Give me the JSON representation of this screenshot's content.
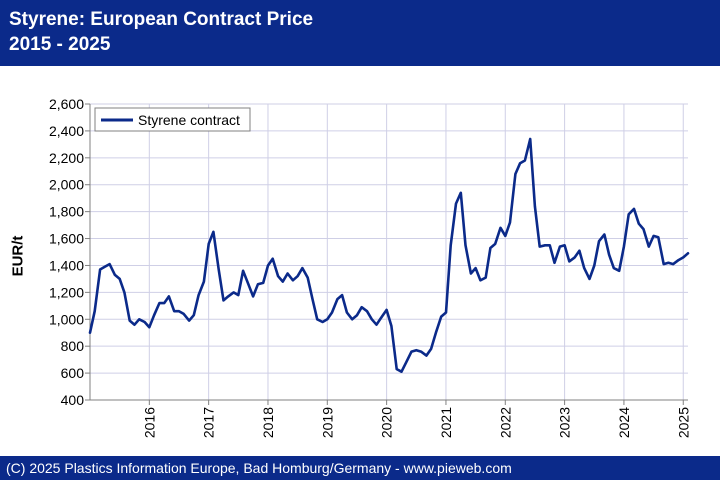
{
  "header": {
    "title_line1": "Styrene: European Contract Price",
    "title_line2": "2015 - 2025",
    "background": "#0b2a8a"
  },
  "footer": {
    "text": "(C) 2025 Plastics Information Europe, Bad Homburg/Germany - www.pieweb.com"
  },
  "chart_data": {
    "type": "line",
    "ylabel": "EUR/t",
    "xlabel": "",
    "ylim": [
      400,
      2600
    ],
    "yticks": [
      400,
      600,
      800,
      1000,
      1200,
      1400,
      1600,
      1800,
      2000,
      2200,
      2400,
      2600
    ],
    "ytick_labels": [
      "400",
      "600",
      "800",
      "1,000",
      "1,200",
      "1,400",
      "1,600",
      "1,800",
      "2,000",
      "2,200",
      "2,400",
      "2,600"
    ],
    "xlim": [
      2015,
      2025.08
    ],
    "xticks": [
      2016,
      2017,
      2018,
      2019,
      2020,
      2021,
      2022,
      2023,
      2024,
      2025
    ],
    "xtick_labels": [
      "2016",
      "2017",
      "2018",
      "2019",
      "2020",
      "2021",
      "2022",
      "2023",
      "2024",
      "2025"
    ],
    "grid": true,
    "legend_position": "top-left",
    "series": [
      {
        "name": "Styrene contract",
        "color": "#0b2a8a",
        "x": [
          2015.0,
          2015.08,
          2015.17,
          2015.25,
          2015.33,
          2015.42,
          2015.5,
          2015.58,
          2015.67,
          2015.75,
          2015.83,
          2015.92,
          2016.0,
          2016.08,
          2016.17,
          2016.25,
          2016.33,
          2016.42,
          2016.5,
          2016.58,
          2016.67,
          2016.75,
          2016.83,
          2016.92,
          2017.0,
          2017.08,
          2017.17,
          2017.25,
          2017.33,
          2017.42,
          2017.5,
          2017.58,
          2017.67,
          2017.75,
          2017.83,
          2017.92,
          2018.0,
          2018.08,
          2018.17,
          2018.25,
          2018.33,
          2018.42,
          2018.5,
          2018.58,
          2018.67,
          2018.75,
          2018.83,
          2018.92,
          2019.0,
          2019.08,
          2019.17,
          2019.25,
          2019.33,
          2019.42,
          2019.5,
          2019.58,
          2019.67,
          2019.75,
          2019.83,
          2019.92,
          2020.0,
          2020.08,
          2020.17,
          2020.25,
          2020.33,
          2020.42,
          2020.5,
          2020.58,
          2020.67,
          2020.75,
          2020.83,
          2020.92,
          2021.0,
          2021.08,
          2021.17,
          2021.25,
          2021.33,
          2021.42,
          2021.5,
          2021.58,
          2021.67,
          2021.75,
          2021.83,
          2021.92,
          2022.0,
          2022.08,
          2022.17,
          2022.25,
          2022.33,
          2022.42,
          2022.5,
          2022.58,
          2022.67,
          2022.75,
          2022.83,
          2022.92,
          2023.0,
          2023.08,
          2023.17,
          2023.25,
          2023.33,
          2023.42,
          2023.5,
          2023.58,
          2023.67,
          2023.75,
          2023.83,
          2023.92,
          2024.0,
          2024.08,
          2024.17,
          2024.25,
          2024.33,
          2024.42,
          2024.5,
          2024.58,
          2024.67,
          2024.75,
          2024.83,
          2024.92,
          2025.0,
          2025.08
        ],
        "values": [
          900,
          1060,
          1370,
          1390,
          1410,
          1330,
          1300,
          1200,
          990,
          960,
          1000,
          980,
          940,
          1030,
          1120,
          1120,
          1170,
          1060,
          1060,
          1040,
          990,
          1030,
          1180,
          1280,
          1560,
          1650,
          1370,
          1140,
          1170,
          1200,
          1180,
          1360,
          1260,
          1170,
          1260,
          1270,
          1400,
          1450,
          1320,
          1280,
          1340,
          1290,
          1320,
          1380,
          1310,
          1150,
          1000,
          980,
          1000,
          1050,
          1150,
          1180,
          1050,
          1000,
          1030,
          1090,
          1060,
          1000,
          960,
          1020,
          1070,
          950,
          630,
          610,
          680,
          760,
          770,
          760,
          730,
          780,
          900,
          1020,
          1050,
          1550,
          1860,
          1940,
          1550,
          1340,
          1380,
          1290,
          1310,
          1530,
          1560,
          1680,
          1620,
          1720,
          2080,
          2160,
          2180,
          2340,
          1840,
          1540,
          1550,
          1550,
          1420,
          1540,
          1550,
          1430,
          1460,
          1510,
          1380,
          1300,
          1400,
          1580,
          1630,
          1480,
          1380,
          1360,
          1540,
          1780,
          1820,
          1710,
          1670,
          1540,
          1620,
          1610,
          1410,
          1420,
          1410,
          1440,
          1460,
          1490
        ]
      }
    ]
  }
}
